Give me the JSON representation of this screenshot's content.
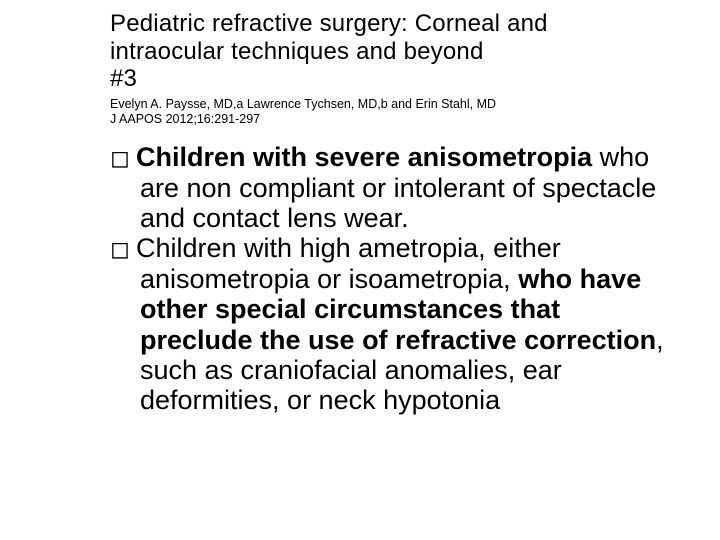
{
  "title_line1": "Pediatric refractive surgery: Corneal and",
  "title_line2": "intraocular techniques and beyond",
  "title_line3": "#3",
  "authors": "Evelyn A. Paysse, MD,a Lawrence Tychsen, MD,b and Erin Stahl, MD",
  "citation": "J AAPOS 2012;16:291-297",
  "bullet_marker": "◻",
  "bullets": [
    {
      "runs": [
        {
          "text": "Children with severe anisometropia",
          "bold": true
        },
        {
          "text": " who are non compliant or intolerant of spectacle and contact lens wear.",
          "bold": false
        }
      ]
    },
    {
      "runs": [
        {
          "text": "Children with high ametropia, either anisometropia or isoametropia, ",
          "bold": false
        },
        {
          "text": "who have other special circumstances that preclude the use of refractive correction",
          "bold": true
        },
        {
          "text": ", such as craniofacial anomalies, ear deformities, or neck hypotonia",
          "bold": false
        }
      ]
    }
  ],
  "colors": {
    "background": "#ffffff",
    "text": "#000000"
  },
  "fonts": {
    "title_size_pt": 24,
    "authors_size_pt": 12,
    "body_size_pt": 27
  }
}
